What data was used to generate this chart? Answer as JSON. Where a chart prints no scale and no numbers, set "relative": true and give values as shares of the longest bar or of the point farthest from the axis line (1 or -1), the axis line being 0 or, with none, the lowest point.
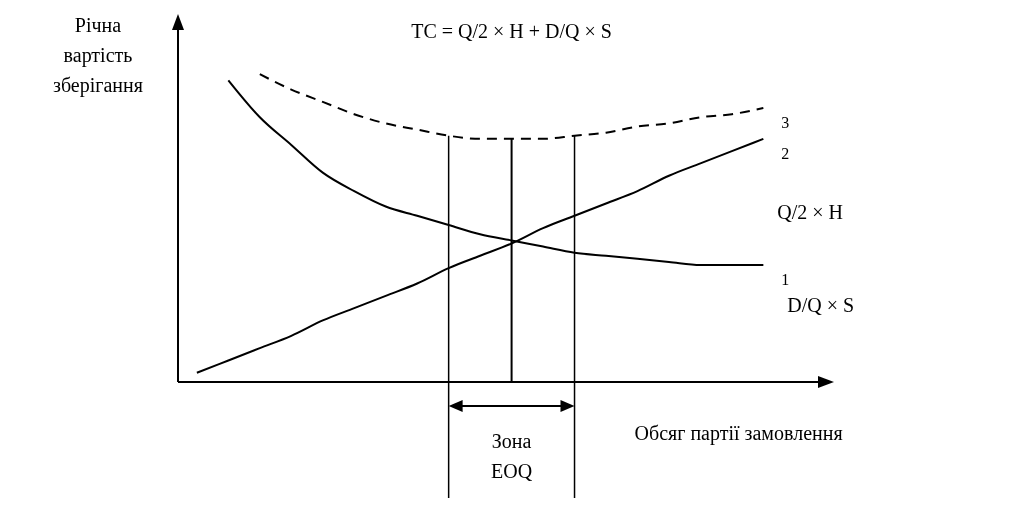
{
  "chart_data": {
    "type": "line",
    "relative": true,
    "ylabel": "Річна вартість зберігання",
    "xlabel": "Обсяг партії замовлення",
    "categories": [
      null,
      null,
      null,
      null,
      null,
      null,
      null,
      null,
      null,
      null,
      null,
      null,
      null,
      null,
      null,
      null,
      null,
      null,
      null
    ],
    "series": [
      {
        "name": "1",
        "color": "#000000",
        "values": [
          null,
          0.98,
          0.86,
          0.77,
          0.68,
          0.62,
          0.57,
          0.54,
          0.51,
          0.48,
          0.46,
          0.44,
          0.42,
          0.41,
          0.4,
          0.39,
          0.38,
          0.38,
          0.38
        ]
      },
      {
        "name": "2",
        "color": "#000000",
        "values": [
          0.03,
          0.07,
          0.11,
          0.15,
          0.2,
          0.24,
          0.28,
          0.32,
          0.37,
          0.41,
          0.45,
          0.5,
          0.54,
          0.58,
          0.62,
          0.67,
          0.71,
          0.75,
          0.79
        ]
      },
      {
        "name": "3",
        "color": "#000000",
        "line_style": "dashed",
        "values": [
          null,
          null,
          1.0,
          0.95,
          0.91,
          0.87,
          0.84,
          0.82,
          0.8,
          0.79,
          0.79,
          0.79,
          0.8,
          0.81,
          0.83,
          0.84,
          0.86,
          0.87,
          0.89
        ]
      }
    ],
    "annotations": [
      "TC = Q/2 × H + D/Q × S",
      "Q/2 × H",
      "D/Q × S",
      "Зона EOQ"
    ],
    "legend": "right",
    "grid": false,
    "marker": "none"
  }
}
